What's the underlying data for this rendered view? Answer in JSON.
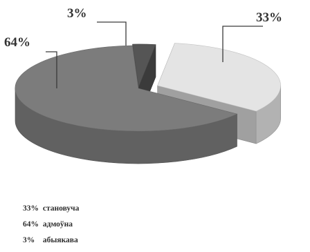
{
  "chart_data": {
    "type": "pie",
    "style": "3d-exploded",
    "slices": [
      {
        "label": "становуча",
        "value": 33,
        "display": "33%",
        "color": "#e4e4e4"
      },
      {
        "label": "адмоўна",
        "value": 64,
        "display": "64%",
        "color": "#7c7c7c"
      },
      {
        "label": "абыякава",
        "value": 3,
        "display": "3%",
        "color": "#555555"
      }
    ],
    "legend": {
      "placement": "bottom-left",
      "items": [
        {
          "pct": "33%",
          "text": "становуча"
        },
        {
          "pct": "64%",
          "text": "адмоўна"
        },
        {
          "pct": "3%",
          "text": "абыякава"
        }
      ]
    }
  }
}
